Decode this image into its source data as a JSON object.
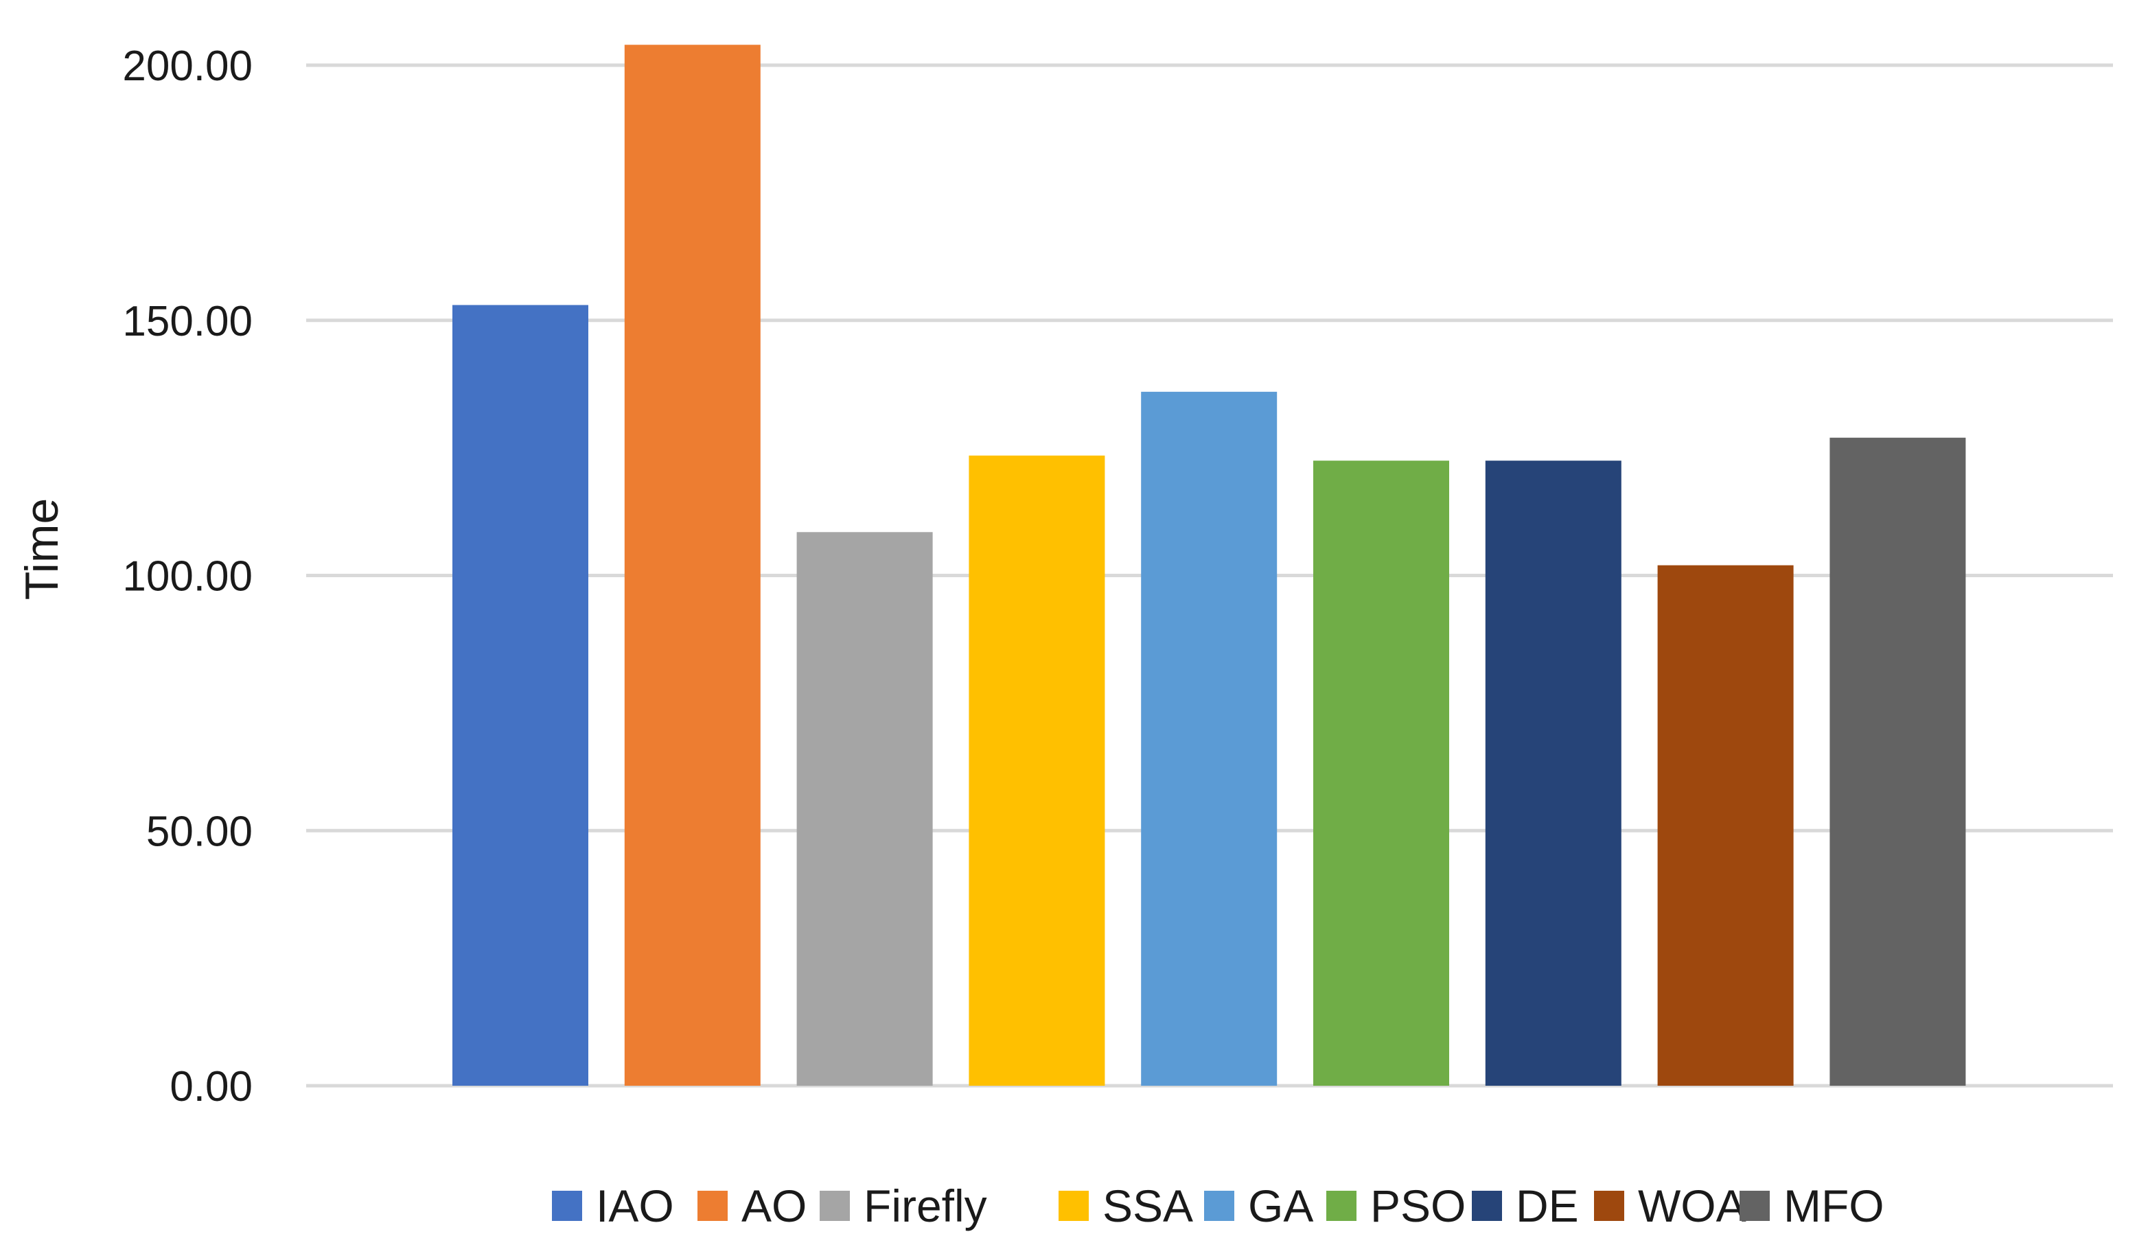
{
  "chart_data": {
    "type": "bar",
    "title": "",
    "xlabel": "",
    "ylabel": "Time",
    "ylim": [
      0,
      200
    ],
    "yticks": [
      {
        "value": 0,
        "label": "0.00"
      },
      {
        "value": 50,
        "label": "50.00"
      },
      {
        "value": 100,
        "label": "100.00"
      },
      {
        "value": 150,
        "label": "150.00"
      },
      {
        "value": 200,
        "label": "200.00"
      }
    ],
    "grid": true,
    "legend_position": "bottom",
    "series": [
      {
        "name": "IAO",
        "value": 153,
        "color": "#4472C4"
      },
      {
        "name": "AO",
        "value": 204,
        "color": "#ED7D31"
      },
      {
        "name": "Firefly",
        "value": 108.5,
        "color": "#A5A5A5"
      },
      {
        "name": "SSA",
        "value": 123.5,
        "color": "#FFC000"
      },
      {
        "name": "GA",
        "value": 136,
        "color": "#5B9BD5"
      },
      {
        "name": "PSO",
        "value": 122.5,
        "color": "#70AD47"
      },
      {
        "name": "DE",
        "value": 122.5,
        "color": "#264478"
      },
      {
        "name": "WOA",
        "value": 102,
        "color": "#9E480E"
      },
      {
        "name": "MFO",
        "value": 127,
        "color": "#636363"
      }
    ]
  }
}
